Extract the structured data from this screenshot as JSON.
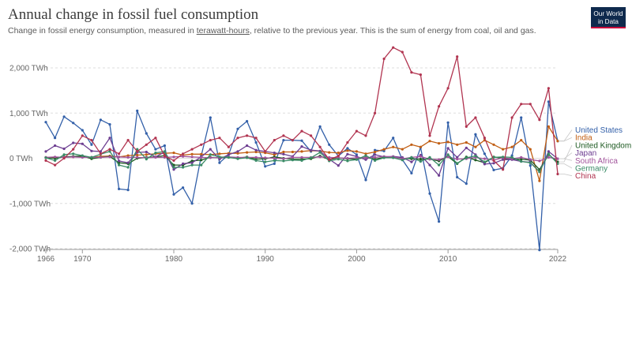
{
  "header": {
    "title": "Annual change in fossil fuel consumption",
    "subtitle_before": "Change in fossil energy consumption, measured in ",
    "subtitle_link": "terawatt-hours",
    "subtitle_after": ", relative to the previous year. This is the sum of energy from coal, oil and gas.",
    "logo_line1": "Our World",
    "logo_line2": "in Data"
  },
  "chart_data": {
    "type": "line",
    "title": "Annual change in fossil fuel consumption",
    "subtitle": "Change in fossil energy consumption, measured in terawatt-hours, relative to the previous year. This is the sum of energy from coal, oil and gas.",
    "xlabel": "",
    "ylabel": "",
    "xlim": [
      1966,
      2022
    ],
    "ylim": [
      -2000,
      2000
    ],
    "grid": "horizontal dashed",
    "legend_position": "right",
    "x_ticks": [
      1966,
      1970,
      1980,
      1990,
      2000,
      2010,
      2022
    ],
    "x_tick_labels": [
      "1966",
      "1970",
      "1980",
      "1990",
      "2000",
      "2010",
      "2022"
    ],
    "y_ticks": [
      -2000,
      -1000,
      0,
      1000,
      2000
    ],
    "y_tick_labels": [
      "-2,000 TWh",
      "-1,000 TWh",
      "0 TWh",
      "1,000 TWh",
      "2,000 TWh"
    ],
    "x": [
      1966,
      1967,
      1968,
      1969,
      1970,
      1971,
      1972,
      1973,
      1974,
      1975,
      1976,
      1977,
      1978,
      1979,
      1980,
      1981,
      1982,
      1983,
      1984,
      1985,
      1986,
      1987,
      1988,
      1989,
      1990,
      1991,
      1992,
      1993,
      1994,
      1995,
      1996,
      1997,
      1998,
      1999,
      2000,
      2001,
      2002,
      2003,
      2004,
      2005,
      2006,
      2007,
      2008,
      2009,
      2010,
      2011,
      2012,
      2013,
      2014,
      2015,
      2016,
      2017,
      2018,
      2019,
      2020,
      2021,
      2022
    ],
    "series": [
      {
        "name": "United States",
        "color": "#3360a9",
        "values": [
          800,
          450,
          920,
          780,
          620,
          300,
          850,
          750,
          -680,
          -700,
          1050,
          550,
          200,
          280,
          -800,
          -650,
          -1000,
          50,
          900,
          -100,
          80,
          650,
          820,
          350,
          -180,
          -120,
          400,
          400,
          390,
          150,
          700,
          300,
          50,
          220,
          80,
          -480,
          180,
          160,
          450,
          -30,
          -330,
          240,
          -780,
          -1400,
          790,
          -420,
          -560,
          530,
          100,
          -260,
          -220,
          60,
          900,
          -160,
          -2030,
          1250,
          380
        ]
      },
      {
        "name": "India",
        "color": "#c15e13",
        "values": [
          20,
          10,
          25,
          30,
          40,
          20,
          40,
          50,
          30,
          60,
          70,
          80,
          100,
          110,
          120,
          70,
          90,
          90,
          80,
          100,
          110,
          110,
          130,
          140,
          120,
          80,
          140,
          140,
          150,
          170,
          160,
          130,
          120,
          170,
          150,
          100,
          140,
          200,
          250,
          200,
          300,
          250,
          380,
          330,
          360,
          300,
          350,
          250,
          400,
          300,
          200,
          250,
          400,
          200,
          -500,
          700,
          380
        ]
      },
      {
        "name": "United Kingdom",
        "color": "#1d5a21",
        "values": [
          10,
          0,
          30,
          40,
          50,
          -10,
          20,
          40,
          -100,
          -120,
          0,
          20,
          30,
          60,
          -150,
          -150,
          -60,
          -40,
          20,
          10,
          20,
          0,
          30,
          -20,
          -10,
          30,
          0,
          -20,
          -20,
          -10,
          50,
          -30,
          10,
          -10,
          -20,
          20,
          -20,
          20,
          30,
          0,
          -10,
          -20,
          -20,
          -60,
          40,
          -120,
          30,
          -40,
          -100,
          30,
          0,
          -20,
          -20,
          -40,
          -250,
          80,
          -80
        ]
      },
      {
        "name": "Japan",
        "color": "#6d3e91",
        "values": [
          150,
          280,
          210,
          340,
          320,
          160,
          150,
          450,
          -60,
          -100,
          130,
          140,
          30,
          140,
          -250,
          -120,
          -100,
          30,
          200,
          -20,
          80,
          150,
          280,
          180,
          150,
          120,
          90,
          40,
          260,
          180,
          160,
          -20,
          -160,
          90,
          40,
          -30,
          80,
          30,
          40,
          20,
          -80,
          70,
          -150,
          -380,
          220,
          20,
          230,
          80,
          -130,
          -110,
          -30,
          -30,
          -70,
          -90,
          -300,
          150,
          -10
        ]
      },
      {
        "name": "South Africa",
        "color": "#a2559c",
        "values": [
          20,
          30,
          20,
          30,
          20,
          25,
          20,
          30,
          30,
          20,
          20,
          10,
          20,
          20,
          30,
          40,
          30,
          20,
          10,
          20,
          30,
          20,
          20,
          20,
          10,
          0,
          -10,
          20,
          20,
          20,
          30,
          20,
          10,
          0,
          10,
          10,
          20,
          40,
          30,
          -10,
          20,
          40,
          -20,
          -30,
          30,
          -20,
          -10,
          20,
          -10,
          -40,
          10,
          -10,
          20,
          -30,
          -60,
          20,
          -10
        ]
      },
      {
        "name": "Germany",
        "color": "#3a8b66",
        "values": [
          10,
          -50,
          80,
          100,
          60,
          20,
          90,
          150,
          -150,
          -200,
          200,
          -20,
          120,
          150,
          -200,
          -200,
          -150,
          -150,
          80,
          30,
          20,
          -10,
          10,
          -50,
          -80,
          -50,
          -60,
          -40,
          -50,
          10,
          130,
          -60,
          -20,
          -60,
          -30,
          60,
          -50,
          10,
          10,
          -40,
          20,
          -70,
          20,
          -150,
          80,
          -110,
          10,
          50,
          -80,
          20,
          30,
          20,
          -70,
          -100,
          -300,
          100,
          -120
        ]
      },
      {
        "name": "China",
        "color": "#b13450",
        "values": [
          -50,
          -150,
          0,
          200,
          500,
          400,
          100,
          200,
          100,
          400,
          150,
          300,
          450,
          50,
          -50,
          100,
          200,
          300,
          400,
          450,
          250,
          450,
          500,
          450,
          150,
          400,
          500,
          400,
          600,
          500,
          250,
          -30,
          50,
          350,
          600,
          500,
          1000,
          2200,
          2450,
          2350,
          1900,
          1850,
          500,
          1150,
          1550,
          2250,
          700,
          900,
          450,
          -50,
          -250,
          900,
          1200,
          1200,
          850,
          1550,
          -350
        ]
      }
    ]
  },
  "legend": {
    "entries": [
      "United States",
      "India",
      "United Kingdom",
      "Japan",
      "South Africa",
      "Germany",
      "China"
    ]
  }
}
